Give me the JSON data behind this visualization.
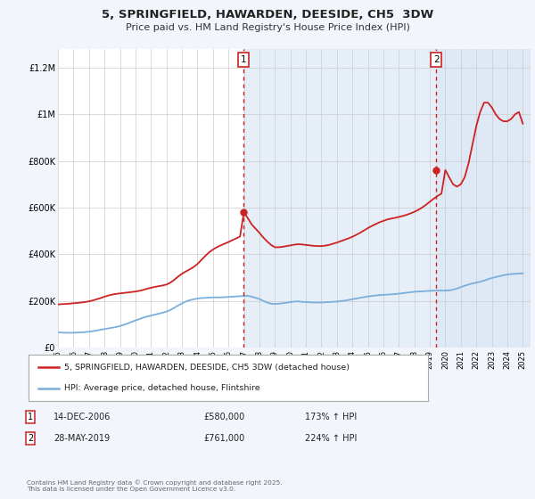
{
  "title": "5, SPRINGFIELD, HAWARDEN, DEESIDE, CH5  3DW",
  "subtitle": "Price paid vs. HM Land Registry's House Price Index (HPI)",
  "background_color": "#f2f5fb",
  "plot_bg_color": "#ffffff",
  "grid_color": "#cccccc",
  "xlim": [
    1995.0,
    2025.5
  ],
  "ylim": [
    0,
    1280000
  ],
  "yticks": [
    0,
    200000,
    400000,
    600000,
    800000,
    1000000,
    1200000
  ],
  "ytick_labels": [
    "£0",
    "£200K",
    "£400K",
    "£600K",
    "£800K",
    "£1M",
    "£1.2M"
  ],
  "xticks": [
    1995,
    1996,
    1997,
    1998,
    1999,
    2000,
    2001,
    2002,
    2003,
    2004,
    2005,
    2006,
    2007,
    2008,
    2009,
    2010,
    2011,
    2012,
    2013,
    2014,
    2015,
    2016,
    2017,
    2018,
    2019,
    2020,
    2021,
    2022,
    2023,
    2024,
    2025
  ],
  "hpi_color": "#7aaedc",
  "price_color": "#cc2222",
  "marker1_x": 2006.96,
  "marker1_y": 580000,
  "marker1_label": "1",
  "marker1_date": "14-DEC-2006",
  "marker1_price": "£580,000",
  "marker1_hpi": "173% ↑ HPI",
  "marker2_x": 2019.41,
  "marker2_y": 761000,
  "marker2_label": "2",
  "marker2_date": "28-MAY-2019",
  "marker2_price": "£761,000",
  "marker2_hpi": "224% ↑ HPI",
  "legend_line1": "5, SPRINGFIELD, HAWARDEN, DEESIDE, CH5 3DW (detached house)",
  "legend_line2": "HPI: Average price, detached house, Flintshire",
  "footnote": "Contains HM Land Registry data © Crown copyright and database right 2025.\nThis data is licensed under the Open Government Licence v3.0.",
  "shade_color": "#dce8f5",
  "hpi_years": [
    1995.0,
    1995.25,
    1995.5,
    1995.75,
    1996.0,
    1996.25,
    1996.5,
    1996.75,
    1997.0,
    1997.25,
    1997.5,
    1997.75,
    1998.0,
    1998.25,
    1998.5,
    1998.75,
    1999.0,
    1999.25,
    1999.5,
    1999.75,
    2000.0,
    2000.25,
    2000.5,
    2000.75,
    2001.0,
    2001.25,
    2001.5,
    2001.75,
    2002.0,
    2002.25,
    2002.5,
    2002.75,
    2003.0,
    2003.25,
    2003.5,
    2003.75,
    2004.0,
    2004.25,
    2004.5,
    2004.75,
    2005.0,
    2005.25,
    2005.5,
    2005.75,
    2006.0,
    2006.25,
    2006.5,
    2006.75,
    2007.0,
    2007.25,
    2007.5,
    2007.75,
    2008.0,
    2008.25,
    2008.5,
    2008.75,
    2009.0,
    2009.25,
    2009.5,
    2009.75,
    2010.0,
    2010.25,
    2010.5,
    2010.75,
    2011.0,
    2011.25,
    2011.5,
    2011.75,
    2012.0,
    2012.25,
    2012.5,
    2012.75,
    2013.0,
    2013.25,
    2013.5,
    2013.75,
    2014.0,
    2014.25,
    2014.5,
    2014.75,
    2015.0,
    2015.25,
    2015.5,
    2015.75,
    2016.0,
    2016.25,
    2016.5,
    2016.75,
    2017.0,
    2017.25,
    2017.5,
    2017.75,
    2018.0,
    2018.25,
    2018.5,
    2018.75,
    2019.0,
    2019.25,
    2019.5,
    2019.75,
    2020.0,
    2020.25,
    2020.5,
    2020.75,
    2021.0,
    2021.25,
    2021.5,
    2021.75,
    2022.0,
    2022.25,
    2022.5,
    2022.75,
    2023.0,
    2023.25,
    2023.5,
    2023.75,
    2024.0,
    2024.25,
    2024.5,
    2024.75,
    2025.0
  ],
  "hpi_values": [
    65000,
    64000,
    63500,
    63000,
    63500,
    64000,
    65000,
    66000,
    68000,
    70000,
    73000,
    76000,
    79000,
    82000,
    85000,
    88000,
    92000,
    97000,
    103000,
    110000,
    116000,
    122000,
    128000,
    133000,
    137000,
    141000,
    145000,
    149000,
    154000,
    161000,
    170000,
    180000,
    189000,
    197000,
    203000,
    207000,
    210000,
    212000,
    213000,
    214000,
    215000,
    215000,
    215000,
    216000,
    217000,
    218000,
    219000,
    220000,
    221000,
    222000,
    218000,
    213000,
    208000,
    200000,
    193000,
    188000,
    187000,
    188000,
    190000,
    192000,
    195000,
    197000,
    198000,
    196000,
    195000,
    194000,
    193000,
    193000,
    193000,
    194000,
    195000,
    196000,
    197000,
    199000,
    201000,
    204000,
    207000,
    210000,
    213000,
    216000,
    219000,
    221000,
    223000,
    225000,
    226000,
    227000,
    228000,
    229000,
    231000,
    233000,
    235000,
    237000,
    239000,
    240000,
    241000,
    242000,
    243000,
    244000,
    244000,
    244000,
    244000,
    245000,
    248000,
    253000,
    259000,
    265000,
    270000,
    275000,
    278000,
    282000,
    287000,
    293000,
    298000,
    302000,
    306000,
    310000,
    313000,
    315000,
    316000,
    317000,
    318000
  ],
  "price_years": [
    1995.0,
    1995.25,
    1995.5,
    1995.75,
    1996.0,
    1996.25,
    1996.5,
    1996.75,
    1997.0,
    1997.25,
    1997.5,
    1997.75,
    1998.0,
    1998.25,
    1998.5,
    1998.75,
    1999.0,
    1999.25,
    1999.5,
    1999.75,
    2000.0,
    2000.25,
    2000.5,
    2000.75,
    2001.0,
    2001.25,
    2001.5,
    2001.75,
    2002.0,
    2002.25,
    2002.5,
    2002.75,
    2003.0,
    2003.25,
    2003.5,
    2003.75,
    2004.0,
    2004.25,
    2004.5,
    2004.75,
    2005.0,
    2005.25,
    2005.5,
    2005.75,
    2006.0,
    2006.25,
    2006.5,
    2006.75,
    2007.0,
    2007.25,
    2007.5,
    2007.75,
    2008.0,
    2008.25,
    2008.5,
    2008.75,
    2009.0,
    2009.25,
    2009.5,
    2009.75,
    2010.0,
    2010.25,
    2010.5,
    2010.75,
    2011.0,
    2011.25,
    2011.5,
    2011.75,
    2012.0,
    2012.25,
    2012.5,
    2012.75,
    2013.0,
    2013.25,
    2013.5,
    2013.75,
    2014.0,
    2014.25,
    2014.5,
    2014.75,
    2015.0,
    2015.25,
    2015.5,
    2015.75,
    2016.0,
    2016.25,
    2016.5,
    2016.75,
    2017.0,
    2017.25,
    2017.5,
    2017.75,
    2018.0,
    2018.25,
    2018.5,
    2018.75,
    2019.0,
    2019.25,
    2019.5,
    2019.75,
    2020.0,
    2020.25,
    2020.5,
    2020.75,
    2021.0,
    2021.25,
    2021.5,
    2021.75,
    2022.0,
    2022.25,
    2022.5,
    2022.75,
    2023.0,
    2023.25,
    2023.5,
    2023.75,
    2024.0,
    2024.25,
    2024.5,
    2024.75,
    2025.0
  ],
  "price_values": [
    185000,
    186000,
    187000,
    188000,
    190000,
    191000,
    193000,
    195000,
    198000,
    202000,
    207000,
    212000,
    218000,
    223000,
    227000,
    230000,
    232000,
    234000,
    236000,
    238000,
    240000,
    243000,
    247000,
    252000,
    256000,
    260000,
    263000,
    266000,
    270000,
    278000,
    290000,
    304000,
    316000,
    326000,
    335000,
    345000,
    358000,
    375000,
    392000,
    408000,
    420000,
    430000,
    438000,
    445000,
    452000,
    460000,
    468000,
    476000,
    580000,
    555000,
    528000,
    510000,
    492000,
    472000,
    455000,
    440000,
    430000,
    430000,
    432000,
    435000,
    438000,
    441000,
    443000,
    442000,
    440000,
    438000,
    436000,
    435000,
    435000,
    437000,
    440000,
    445000,
    450000,
    456000,
    462000,
    468000,
    475000,
    483000,
    492000,
    502000,
    512000,
    521000,
    529000,
    537000,
    543000,
    549000,
    553000,
    556000,
    560000,
    564000,
    569000,
    575000,
    582000,
    590000,
    600000,
    612000,
    625000,
    638000,
    650000,
    660000,
    761000,
    730000,
    700000,
    690000,
    700000,
    730000,
    790000,
    870000,
    950000,
    1010000,
    1050000,
    1050000,
    1030000,
    1000000,
    980000,
    970000,
    970000,
    980000,
    1000000,
    1010000,
    960000
  ]
}
